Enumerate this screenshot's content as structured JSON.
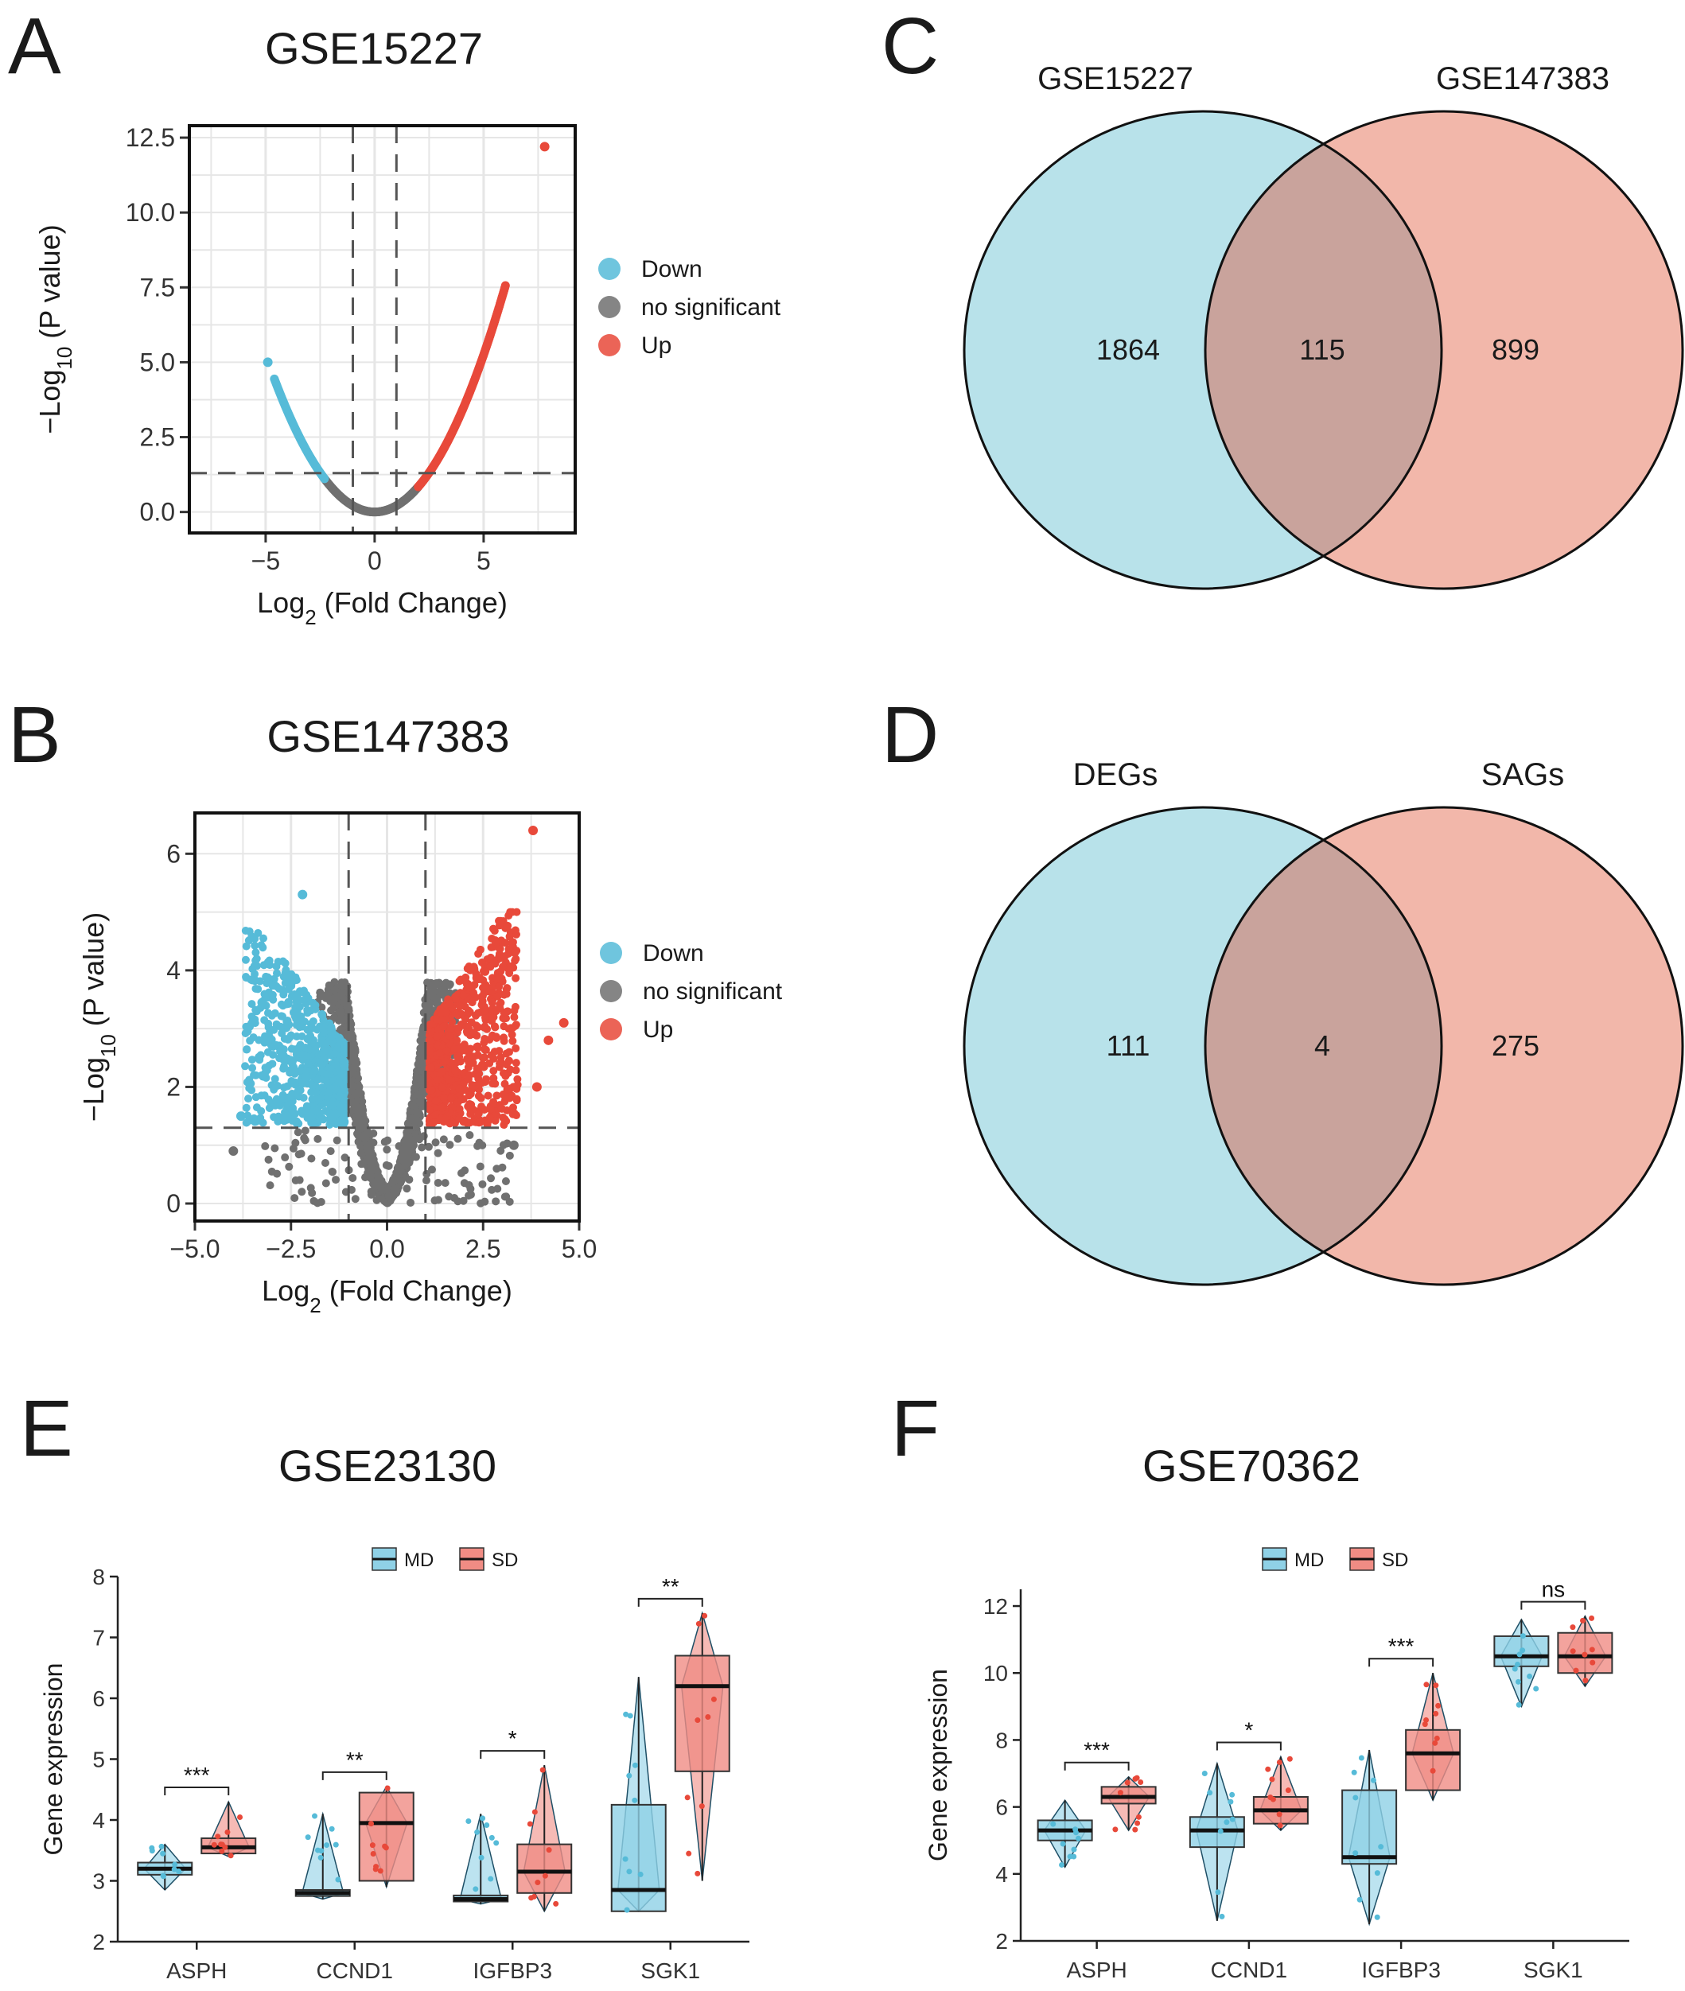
{
  "figure": {
    "panel_letters": [
      "A",
      "B",
      "C",
      "D",
      "E",
      "F"
    ]
  },
  "colors": {
    "down": "#56bbd8",
    "ns": "#707070",
    "up": "#e8493a",
    "venn_left": "#b8e2ea",
    "venn_right": "#f2b7aa",
    "venn_overlap": "#c9a39c",
    "box_md": "#8fd1e6",
    "box_sd": "#f08c84"
  },
  "chart_data": [
    {
      "panel": "A",
      "type": "scatter",
      "title": "GSE15227",
      "xlabel": "Log2 (Fold Change)",
      "ylabel": "−Log10 (P value)",
      "xlim": [
        -8.5,
        9.2
      ],
      "ylim": [
        -0.7,
        12.9
      ],
      "xticks": [
        -5,
        0,
        5
      ],
      "yticks": [
        0.0,
        2.5,
        5.0,
        7.5,
        10.0,
        12.5
      ],
      "xtick_labels": [
        "−5",
        "0",
        "5"
      ],
      "ytick_labels": [
        "0.0",
        "2.5",
        "5.0",
        "7.5",
        "10.0",
        "12.5"
      ],
      "vlines": [
        -1,
        1
      ],
      "hline": 1.3,
      "legend": [
        "Down",
        "no significant",
        "Up"
      ],
      "legend_position": "right",
      "grid": true,
      "curve": {
        "coef": 0.21,
        "down_x_range": [
          -4.6,
          -2.3
        ],
        "ns_x_range": [
          -2.3,
          2.0
        ],
        "up_x_range": [
          2.0,
          6.0
        ]
      },
      "points": [
        {
          "x": -4.9,
          "y": 5.0,
          "group": "Down"
        },
        {
          "x": 7.8,
          "y": 12.2,
          "group": "Up"
        }
      ]
    },
    {
      "panel": "B",
      "type": "scatter",
      "title": "GSE147383",
      "xlabel": "Log2 (Fold Change)",
      "ylabel": "−Log10 (P value)",
      "xlim": [
        -5.0,
        5.0
      ],
      "ylim": [
        -0.3,
        6.7
      ],
      "xticks": [
        -5.0,
        -2.5,
        0.0,
        2.5,
        5.0
      ],
      "yticks": [
        0,
        2,
        4,
        6
      ],
      "xtick_labels": [
        "−5.0",
        "−2.5",
        "0.0",
        "2.5",
        "5.0"
      ],
      "ytick_labels": [
        "0",
        "2",
        "4",
        "6"
      ],
      "vlines": [
        -1,
        1
      ],
      "hline": 1.3,
      "legend": [
        "Down",
        "no significant",
        "Up"
      ],
      "legend_position": "right",
      "grid": true,
      "outliers": [
        {
          "x": 3.8,
          "y": 6.4,
          "group": "Up"
        },
        {
          "x": -2.2,
          "y": 5.3,
          "group": "Down"
        },
        {
          "x": 4.6,
          "y": 3.1,
          "group": "Up"
        },
        {
          "x": 4.2,
          "y": 2.8,
          "group": "Up"
        },
        {
          "x": 3.9,
          "y": 2.0,
          "group": "Up"
        },
        {
          "x": -3.8,
          "y": 1.5,
          "group": "Down"
        },
        {
          "x": -4.0,
          "y": 0.9,
          "group": "no significant"
        },
        {
          "x": 3.3,
          "y": 1.0,
          "group": "no significant"
        }
      ]
    },
    {
      "panel": "C",
      "type": "venn",
      "sets": [
        "GSE15227",
        "GSE147383"
      ],
      "values": {
        "left_only": "1864",
        "both": "115",
        "right_only": "899"
      }
    },
    {
      "panel": "D",
      "type": "venn",
      "sets": [
        "DEGs",
        "SAGs"
      ],
      "values": {
        "left_only": "111",
        "both": "4",
        "right_only": "275"
      }
    },
    {
      "panel": "E",
      "type": "box",
      "title": "GSE23130",
      "ylabel": "Gene expression",
      "ylim": [
        2,
        8
      ],
      "yticks": [
        2,
        3,
        4,
        5,
        6,
        7,
        8
      ],
      "categories": [
        "ASPH",
        "CCND1",
        "IGFBP3",
        "SGK1"
      ],
      "legend": [
        "MD",
        "SD"
      ],
      "legend_position": "top",
      "series": [
        {
          "name": "MD",
          "boxes": [
            {
              "min": 2.85,
              "q1": 3.1,
              "median": 3.2,
              "q3": 3.3,
              "max": 3.6
            },
            {
              "min": 2.7,
              "q1": 2.75,
              "median": 2.8,
              "q3": 2.85,
              "max": 4.1
            },
            {
              "min": 2.62,
              "q1": 2.66,
              "median": 2.7,
              "q3": 2.76,
              "max": 4.1
            },
            {
              "min": 2.5,
              "q1": 2.5,
              "median": 2.85,
              "q3": 4.25,
              "max": 6.35
            }
          ]
        },
        {
          "name": "SD",
          "boxes": [
            {
              "min": 3.4,
              "q1": 3.45,
              "median": 3.55,
              "q3": 3.7,
              "max": 4.3
            },
            {
              "min": 2.9,
              "q1": 3.0,
              "median": 3.95,
              "q3": 4.45,
              "max": 4.55
            },
            {
              "min": 2.5,
              "q1": 2.8,
              "median": 3.15,
              "q3": 3.6,
              "max": 4.9
            },
            {
              "min": 3.0,
              "q1": 4.8,
              "median": 6.2,
              "q3": 6.7,
              "max": 7.4
            }
          ]
        }
      ],
      "significance": [
        "***",
        "**",
        "*",
        "**"
      ]
    },
    {
      "panel": "F",
      "type": "box",
      "title": "GSE70362",
      "ylabel": "Gene expression",
      "ylim": [
        2,
        12.5
      ],
      "yticks": [
        2,
        4,
        6,
        8,
        10,
        12
      ],
      "categories": [
        "ASPH",
        "CCND1",
        "IGFBP3",
        "SGK1"
      ],
      "legend": [
        "MD",
        "SD"
      ],
      "legend_position": "top",
      "series": [
        {
          "name": "MD",
          "boxes": [
            {
              "min": 4.2,
              "q1": 5.0,
              "median": 5.3,
              "q3": 5.6,
              "max": 6.2
            },
            {
              "min": 2.6,
              "q1": 4.8,
              "median": 5.3,
              "q3": 5.7,
              "max": 7.3
            },
            {
              "min": 2.5,
              "q1": 4.3,
              "median": 4.5,
              "q3": 6.5,
              "max": 7.7
            },
            {
              "min": 9.0,
              "q1": 10.2,
              "median": 10.5,
              "q3": 11.1,
              "max": 11.6
            }
          ]
        },
        {
          "name": "SD",
          "boxes": [
            {
              "min": 5.3,
              "q1": 6.1,
              "median": 6.3,
              "q3": 6.6,
              "max": 6.9
            },
            {
              "min": 5.3,
              "q1": 5.5,
              "median": 5.9,
              "q3": 6.3,
              "max": 7.5
            },
            {
              "min": 6.2,
              "q1": 6.5,
              "median": 7.6,
              "q3": 8.3,
              "max": 10.0
            },
            {
              "min": 9.6,
              "q1": 10.0,
              "median": 10.5,
              "q3": 11.2,
              "max": 11.7
            }
          ]
        }
      ],
      "significance": [
        "***",
        "*",
        "***",
        "ns"
      ]
    }
  ]
}
